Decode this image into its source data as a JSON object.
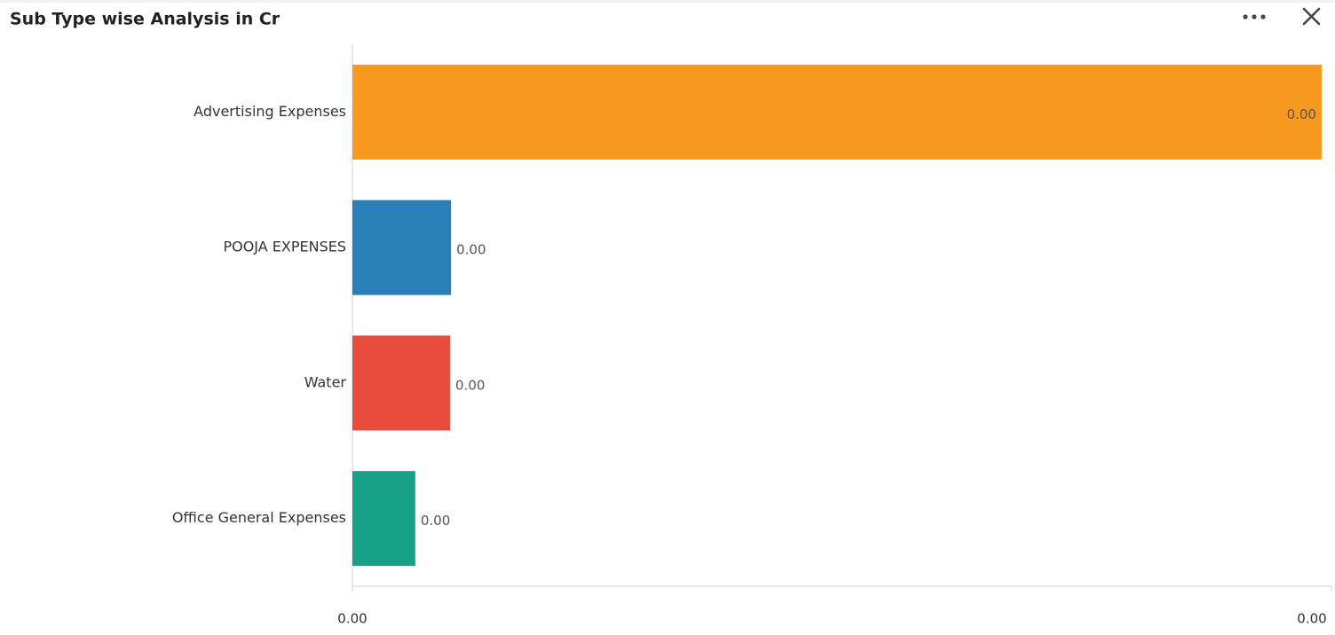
{
  "chart_data": {
    "type": "bar",
    "orientation": "horizontal",
    "title": "Sub Type wise Analysis in Cr",
    "categories": [
      "Advertising Expenses",
      "POOJA EXPENSES",
      "Water",
      "Office General Expenses"
    ],
    "values": [
      0.00396,
      0.000403,
      0.000399,
      0.000257
    ],
    "value_labels": [
      "0.00",
      "0.00",
      "0.00",
      "0.00"
    ],
    "colors": [
      "#f7991f",
      "#2a7fb8",
      "#e84c3d",
      "#17a086"
    ],
    "xlim": [
      0,
      0.004
    ],
    "xticks": [
      {
        "value": 0,
        "label": "0.00"
      },
      {
        "value": 0.004,
        "label": "0.00"
      }
    ]
  }
}
